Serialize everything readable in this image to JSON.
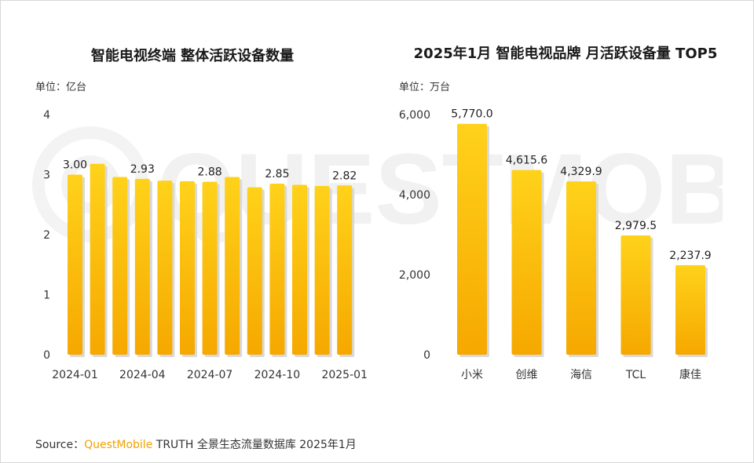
{
  "chart_data": [
    {
      "type": "bar",
      "title": "智能电视终端 整体活跃设备数量",
      "unit_label": "单位：亿台",
      "categories": [
        "2024-01",
        "2024-02",
        "2024-03",
        "2024-04",
        "2024-05",
        "2024-06",
        "2024-07",
        "2024-08",
        "2024-09",
        "2024-10",
        "2024-11",
        "2024-12",
        "2025-01"
      ],
      "x_tick_labels": [
        "2024-01",
        "",
        "",
        "2024-04",
        "",
        "",
        "2024-07",
        "",
        "",
        "2024-10",
        "",
        "",
        "2025-01"
      ],
      "values": [
        3.0,
        3.18,
        2.96,
        2.93,
        2.9,
        2.89,
        2.88,
        2.96,
        2.79,
        2.85,
        2.83,
        2.81,
        2.82
      ],
      "data_labels": [
        "3.00",
        "",
        "",
        "2.93",
        "",
        "",
        "2.88",
        "",
        "",
        "2.85",
        "",
        "",
        "2.82"
      ],
      "ylim": [
        0,
        4
      ],
      "y_ticks": [
        "0",
        "1",
        "2",
        "3",
        "4"
      ],
      "grid": false
    },
    {
      "type": "bar",
      "title": "2025年1月 智能电视品牌 月活跃设备量 TOP5",
      "unit_label": "单位：万台",
      "categories": [
        "小米",
        "创维",
        "海信",
        "TCL",
        "康佳"
      ],
      "values": [
        5770.0,
        4615.6,
        4329.9,
        2979.5,
        2237.9
      ],
      "data_labels": [
        "5,770.0",
        "4,615.6",
        "4,329.9",
        "2,979.5",
        "2,237.9"
      ],
      "ylim": [
        0,
        6000
      ],
      "y_ticks": [
        "0",
        "2,000",
        "4,000",
        "6,000"
      ],
      "grid": false
    }
  ],
  "watermark_text": "QUESTMOBILE",
  "source": {
    "prefix": "Source：",
    "brand": "QuestMobile",
    "rest": " TRUTH 全景生态流量数据库 2025年1月"
  },
  "colors": {
    "bar_top": "#ffd21a",
    "bar_bottom": "#f6a800",
    "shadow": "#d9d9d9",
    "brand": "#f2a100"
  }
}
